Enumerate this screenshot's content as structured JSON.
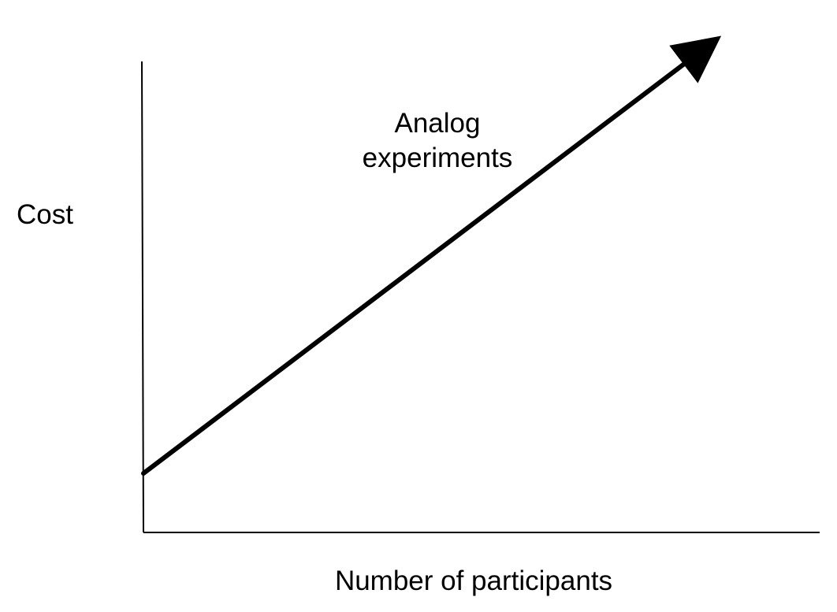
{
  "chart_data": {
    "type": "line",
    "title": "",
    "xlabel": "Number of participants",
    "ylabel": "Cost",
    "grid": false,
    "axis_ticks": false,
    "series": [
      {
        "label_lines": [
          "Analog",
          "experiments"
        ],
        "trend": "increasing",
        "arrow_end": true,
        "starts_above_zero": true
      }
    ]
  },
  "colors": {
    "axis": "#000000",
    "series": "#000000",
    "background": "#ffffff"
  }
}
